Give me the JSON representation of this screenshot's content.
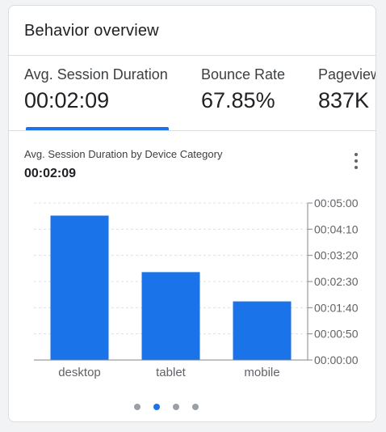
{
  "card": {
    "title": "Behavior overview"
  },
  "metrics": [
    {
      "label": "Avg. Session Duration",
      "value": "00:02:09",
      "selected": true
    },
    {
      "label": "Bounce Rate",
      "value": "67.85%",
      "selected": false
    },
    {
      "label": "Pageviews",
      "value": "837K",
      "selected": false
    }
  ],
  "chart_header": {
    "title": "Avg. Session Duration by Device Category",
    "value": "00:02:09",
    "menu_icon": "more-vert-icon"
  },
  "colors": {
    "accent": "#1a73e8",
    "bar": "#1a73e8",
    "dot_inactive": "#9aa0a6"
  },
  "chart_data": {
    "type": "bar",
    "title": "Avg. Session Duration by Device Category",
    "categories": [
      "desktop",
      "tablet",
      "mobile"
    ],
    "values": [
      276,
      168,
      112
    ],
    "value_unit": "seconds",
    "ylim": [
      0,
      300
    ],
    "y_axis_position": "right",
    "y_ticks": [
      0,
      50,
      100,
      150,
      200,
      250,
      300
    ],
    "y_tick_labels": [
      "00:00:00",
      "00:00:50",
      "00:01:40",
      "00:02:30",
      "00:03:20",
      "00:04:10",
      "00:05:00"
    ],
    "grid": true,
    "legend": false
  },
  "pagination": {
    "total": 4,
    "active_index": 1
  }
}
